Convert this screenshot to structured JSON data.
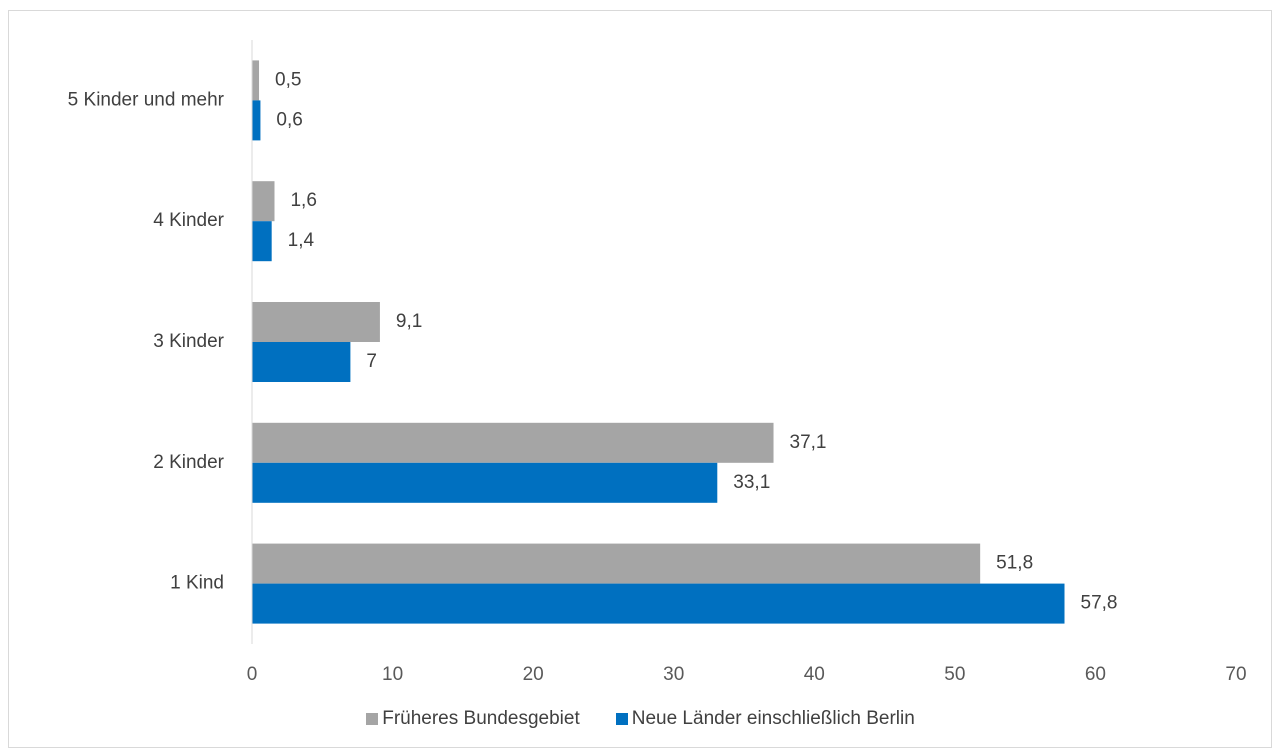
{
  "chart_data": {
    "type": "bar",
    "orientation": "horizontal",
    "categories": [
      "5 Kinder und mehr",
      "4 Kinder",
      "3 Kinder",
      "2 Kinder",
      "1 Kind"
    ],
    "series": [
      {
        "name": "Früheres Bundesgebiet",
        "color": "#a5a5a5",
        "values": [
          0.5,
          1.6,
          9.1,
          37.1,
          51.8
        ],
        "labels": [
          "0,5",
          "1,6",
          "9,1",
          "37,1",
          "51,8"
        ]
      },
      {
        "name": "Neue Länder einschließlich Berlin",
        "color": "#0070c0",
        "values": [
          0.6,
          1.4,
          7,
          33.1,
          57.8
        ],
        "labels": [
          "0,6",
          "1,4",
          "7",
          "33,1",
          "57,8"
        ]
      }
    ],
    "xlim": [
      0,
      70
    ],
    "xticks": [
      "0",
      "10",
      "20",
      "30",
      "40",
      "50",
      "60",
      "70"
    ],
    "grid": false,
    "legend_position": "bottom"
  }
}
